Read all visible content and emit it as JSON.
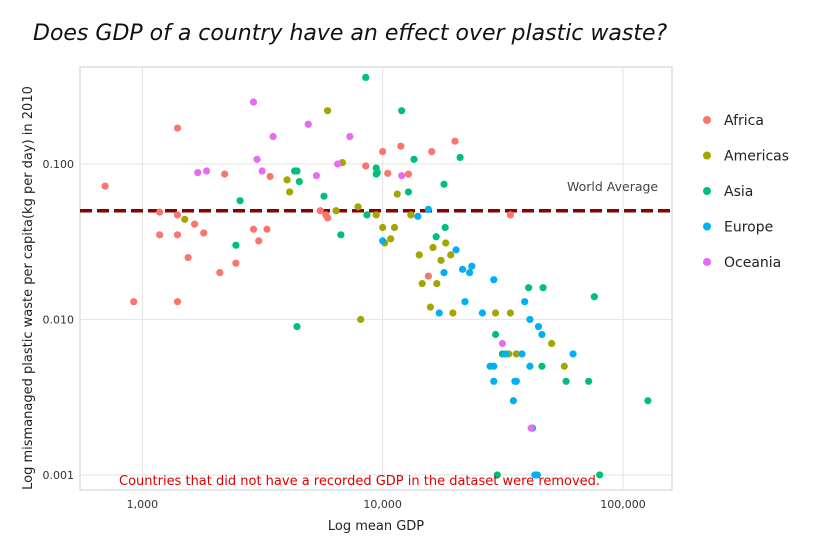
{
  "chart_data": {
    "type": "scatter",
    "title": "Does GDP of a country have an effect over plastic waste?",
    "xlabel": "Log mean GDP",
    "ylabel": "Log mismanaged plastic waste per capita(kg per day) in 2010",
    "xscale": "log",
    "yscale": "log",
    "xlim": [
      550,
      160000
    ],
    "ylim": [
      0.0008,
      0.42
    ],
    "x_ticks": [
      1000,
      10000,
      100000
    ],
    "x_tick_labels": [
      "1,000",
      "10,000",
      "100,000"
    ],
    "y_ticks": [
      0.001,
      0.01,
      0.1
    ],
    "y_tick_labels": [
      "0.001",
      "0.010",
      "0.100"
    ],
    "grid": true,
    "legend_position": "right",
    "reference_line": {
      "y": 0.05,
      "label": "World Average",
      "color": "#8b0000",
      "style": "dashed"
    },
    "note": "Countries that did not have a recorded GDP in the dataset were removed.",
    "series": [
      {
        "name": "Africa",
        "color": "#f8766d",
        "points": [
          [
            700,
            0.072
          ],
          [
            920,
            0.013
          ],
          [
            1180,
            0.049
          ],
          [
            1180,
            0.035
          ],
          [
            1400,
            0.17
          ],
          [
            1400,
            0.047
          ],
          [
            1400,
            0.035
          ],
          [
            1400,
            0.013
          ],
          [
            1550,
            0.025
          ],
          [
            1650,
            0.041
          ],
          [
            1800,
            0.036
          ],
          [
            2100,
            0.02
          ],
          [
            2200,
            0.086
          ],
          [
            2450,
            0.023
          ],
          [
            2900,
            0.038
          ],
          [
            3050,
            0.032
          ],
          [
            3300,
            0.038
          ],
          [
            3400,
            0.083
          ],
          [
            5500,
            0.05
          ],
          [
            5800,
            0.047
          ],
          [
            5900,
            0.045
          ],
          [
            8500,
            0.097
          ],
          [
            10000,
            0.12
          ],
          [
            10500,
            0.087
          ],
          [
            11900,
            0.13
          ],
          [
            12800,
            0.086
          ],
          [
            15500,
            0.019
          ],
          [
            16000,
            0.12
          ],
          [
            20000,
            0.14
          ],
          [
            34000,
            0.047
          ]
        ]
      },
      {
        "name": "Americas",
        "color": "#a3a500",
        "points": [
          [
            1500,
            0.044
          ],
          [
            4000,
            0.079
          ],
          [
            4100,
            0.066
          ],
          [
            5900,
            0.22
          ],
          [
            6400,
            0.05
          ],
          [
            6800,
            0.102
          ],
          [
            7900,
            0.053
          ],
          [
            8100,
            0.01
          ],
          [
            9400,
            0.047
          ],
          [
            10000,
            0.039
          ],
          [
            10200,
            0.031
          ],
          [
            10800,
            0.033
          ],
          [
            11200,
            0.039
          ],
          [
            11500,
            0.064
          ],
          [
            13100,
            0.047
          ],
          [
            14200,
            0.026
          ],
          [
            14600,
            0.017
          ],
          [
            15800,
            0.012
          ],
          [
            16200,
            0.029
          ],
          [
            16800,
            0.017
          ],
          [
            17500,
            0.024
          ],
          [
            18300,
            0.031
          ],
          [
            19200,
            0.026
          ],
          [
            19600,
            0.011
          ],
          [
            29500,
            0.011
          ],
          [
            33500,
            0.006
          ],
          [
            34000,
            0.011
          ],
          [
            36000,
            0.006
          ],
          [
            50500,
            0.007
          ],
          [
            57000,
            0.005
          ]
        ]
      },
      {
        "name": "Asia",
        "color": "#00bf7d",
        "points": [
          [
            2450,
            0.03
          ],
          [
            2550,
            0.058
          ],
          [
            4300,
            0.09
          ],
          [
            4400,
            0.09
          ],
          [
            4400,
            0.009
          ],
          [
            4500,
            0.077
          ],
          [
            5700,
            0.062
          ],
          [
            6700,
            0.035
          ],
          [
            8500,
            0.36
          ],
          [
            8600,
            0.047
          ],
          [
            9400,
            0.086
          ],
          [
            9400,
            0.094
          ],
          [
            9500,
            0.088
          ],
          [
            12000,
            0.22
          ],
          [
            12800,
            0.066
          ],
          [
            13500,
            0.107
          ],
          [
            16700,
            0.034
          ],
          [
            18000,
            0.074
          ],
          [
            18200,
            0.039
          ],
          [
            21000,
            0.11
          ],
          [
            29500,
            0.008
          ],
          [
            30000,
            0.001
          ],
          [
            31500,
            0.006
          ],
          [
            40500,
            0.016
          ],
          [
            42000,
            0.002
          ],
          [
            46500,
            0.016
          ],
          [
            46000,
            0.005
          ],
          [
            58000,
            0.004
          ],
          [
            72000,
            0.004
          ],
          [
            76000,
            0.014
          ],
          [
            80000,
            0.001
          ],
          [
            127000,
            0.003
          ]
        ]
      },
      {
        "name": "Europe",
        "color": "#00b0f6",
        "points": [
          [
            10000,
            0.032
          ],
          [
            14000,
            0.046
          ],
          [
            15500,
            0.051
          ],
          [
            17200,
            0.011
          ],
          [
            18000,
            0.02
          ],
          [
            20200,
            0.028
          ],
          [
            21500,
            0.021
          ],
          [
            22000,
            0.013
          ],
          [
            23000,
            0.02
          ],
          [
            23500,
            0.022
          ],
          [
            26000,
            0.011
          ],
          [
            28000,
            0.005
          ],
          [
            29000,
            0.018
          ],
          [
            29000,
            0.005
          ],
          [
            29000,
            0.004
          ],
          [
            32500,
            0.006
          ],
          [
            35000,
            0.003
          ],
          [
            35500,
            0.004
          ],
          [
            36000,
            0.004
          ],
          [
            38000,
            0.006
          ],
          [
            39000,
            0.013
          ],
          [
            41000,
            0.01
          ],
          [
            41000,
            0.005
          ],
          [
            42000,
            0.002
          ],
          [
            43000,
            0.001
          ],
          [
            44000,
            0.001
          ],
          [
            44500,
            0.009
          ],
          [
            46000,
            0.008
          ],
          [
            62000,
            0.006
          ]
        ]
      },
      {
        "name": "Oceania",
        "color": "#e76bf3",
        "points": [
          [
            1700,
            0.088
          ],
          [
            1850,
            0.09
          ],
          [
            2900,
            0.25
          ],
          [
            3000,
            0.107
          ],
          [
            3150,
            0.09
          ],
          [
            3500,
            0.15
          ],
          [
            4900,
            0.18
          ],
          [
            5300,
            0.084
          ],
          [
            6500,
            0.1
          ],
          [
            7300,
            0.15
          ],
          [
            12000,
            0.084
          ],
          [
            31500,
            0.007
          ],
          [
            41500,
            0.002
          ]
        ]
      }
    ]
  }
}
